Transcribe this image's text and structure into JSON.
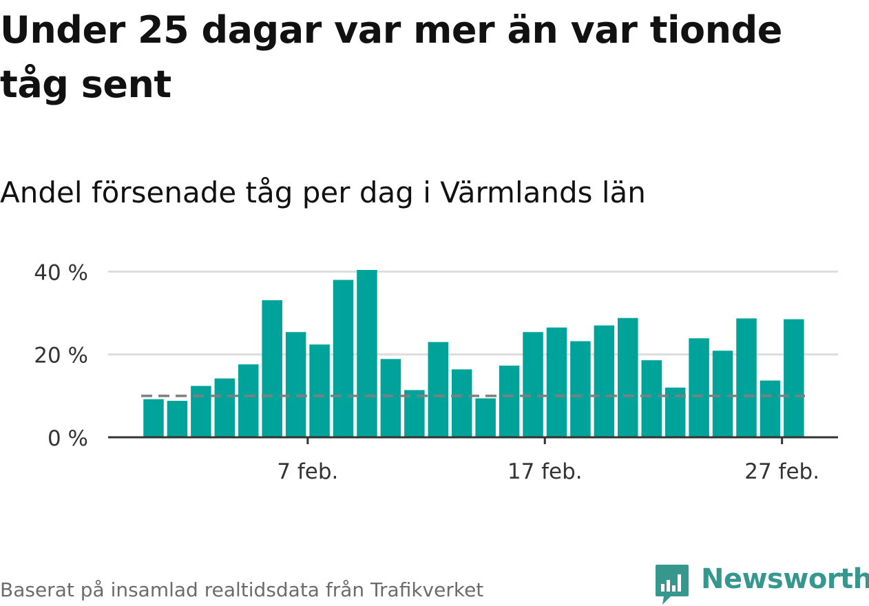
{
  "headline": "Under 25 dagar var mer än var tionde tåg sent",
  "subtitle": "Andel försenade tåg per dag i Värmlands län",
  "footer": {
    "source": "Baserat på insamlad realtidsdata från Trafikverket",
    "brand": "Newsworthy"
  },
  "colors": {
    "bar": "#00a39a",
    "reference_line": "#7f7f7f",
    "grid": "#dddddd",
    "axis": "#333333",
    "brand": "#36978f"
  },
  "icons": {
    "brand_logo": "newsworthy-logo-icon"
  },
  "chart_data": {
    "type": "bar",
    "title": "Andel försenade tåg per dag i Värmlands län",
    "x": [
      "2025-02-01",
      "2025-02-02",
      "2025-02-03",
      "2025-02-04",
      "2025-02-05",
      "2025-02-06",
      "2025-02-07",
      "2025-02-08",
      "2025-02-09",
      "2025-02-10",
      "2025-02-11",
      "2025-02-12",
      "2025-02-13",
      "2025-02-14",
      "2025-02-15",
      "2025-02-16",
      "2025-02-17",
      "2025-02-18",
      "2025-02-19",
      "2025-02-20",
      "2025-02-21",
      "2025-02-22",
      "2025-02-23",
      "2025-02-24",
      "2025-02-25",
      "2025-02-26",
      "2025-02-27",
      "2025-02-28"
    ],
    "values": [
      9.2,
      8.8,
      12.4,
      14.2,
      17.6,
      33.1,
      25.4,
      22.4,
      38.0,
      40.4,
      18.9,
      11.4,
      23.0,
      16.4,
      9.4,
      17.3,
      25.4,
      26.5,
      23.2,
      27.0,
      28.8,
      18.6,
      12.0,
      23.9,
      20.9,
      28.7,
      13.7,
      28.5
    ],
    "reference_value": 10,
    "ylim": [
      0,
      40.4
    ],
    "y_ticks": [
      0,
      20,
      40
    ],
    "y_tick_labels": [
      "0 %",
      "20 %",
      "40 %"
    ],
    "x_ticks": [
      "2025-02-07",
      "2025-02-17",
      "2025-02-27"
    ],
    "x_tick_labels": [
      "7 feb.",
      "17 feb.",
      "27 feb."
    ],
    "grid": true,
    "xlabel": "",
    "ylabel": ""
  }
}
